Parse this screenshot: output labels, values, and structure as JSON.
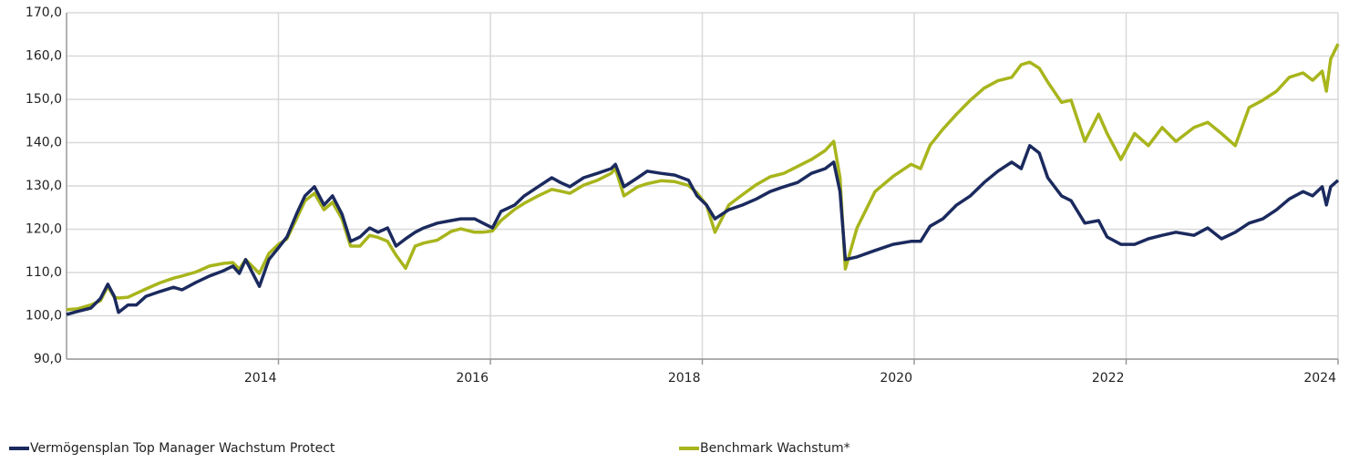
{
  "chart_data": {
    "type": "line",
    "x": [
      2012.0,
      2012.1,
      2012.23,
      2012.32,
      2012.39,
      2012.45,
      2012.49,
      2012.58,
      2012.66,
      2012.75,
      2012.88,
      2013.01,
      2013.09,
      2013.22,
      2013.35,
      2013.48,
      2013.57,
      2013.63,
      2013.69,
      2013.82,
      2013.91,
      2014.0,
      2014.08,
      2014.17,
      2014.25,
      2014.34,
      2014.43,
      2014.51,
      2014.6,
      2014.68,
      2014.77,
      2014.86,
      2014.94,
      2015.03,
      2015.11,
      2015.2,
      2015.29,
      2015.37,
      2015.5,
      2015.63,
      2015.72,
      2015.85,
      2015.93,
      2016.02,
      2016.1,
      2016.23,
      2016.32,
      2016.45,
      2016.58,
      2016.66,
      2016.75,
      2016.88,
      2017.01,
      2017.14,
      2017.18,
      2017.26,
      2017.39,
      2017.48,
      2017.61,
      2017.74,
      2017.87,
      2017.95,
      2018.04,
      2018.12,
      2018.25,
      2018.38,
      2018.51,
      2018.64,
      2018.77,
      2018.9,
      2019.03,
      2019.16,
      2019.24,
      2019.3,
      2019.35,
      2019.46,
      2019.63,
      2019.8,
      2019.97,
      2020.06,
      2020.15,
      2020.27,
      2020.4,
      2020.53,
      2020.66,
      2020.79,
      2020.92,
      2021.01,
      2021.09,
      2021.18,
      2021.26,
      2021.39,
      2021.48,
      2021.61,
      2021.74,
      2021.82,
      2021.95,
      2022.08,
      2022.21,
      2022.34,
      2022.47,
      2022.64,
      2022.77,
      2022.9,
      2023.03,
      2023.16,
      2023.29,
      2023.42,
      2023.54,
      2023.67,
      2023.76,
      2023.85,
      2023.89,
      2023.93,
      2024.0
    ],
    "series": [
      {
        "name": "Vermögensplan Top Manager Wachstum Protect",
        "color": "#1b2a5e",
        "values": [
          100.3,
          101,
          101.8,
          104,
          107.3,
          104.5,
          100.8,
          102.5,
          102.5,
          104.5,
          105.6,
          106.6,
          106,
          107.7,
          109.2,
          110.4,
          111.5,
          109.8,
          113,
          106.8,
          113,
          115.7,
          118.2,
          123.5,
          127.7,
          129.8,
          125.6,
          127.7,
          123.5,
          117.2,
          118.2,
          120.3,
          119.3,
          120.3,
          116.1,
          117.8,
          119.3,
          120.3,
          121.4,
          122,
          122.4,
          122.4,
          121.4,
          120.3,
          124.1,
          125.6,
          127.7,
          129.8,
          131.9,
          130.8,
          129.8,
          131.9,
          132.9,
          134,
          135,
          129.8,
          131.9,
          133.4,
          132.9,
          132.5,
          131.3,
          127.7,
          125.6,
          122.4,
          124.5,
          125.6,
          127,
          128.7,
          129.8,
          130.8,
          132.9,
          134,
          135.5,
          128.7,
          113,
          113.6,
          115.1,
          116.5,
          117.2,
          117.2,
          120.7,
          122.4,
          125.6,
          127.7,
          130.8,
          133.4,
          135.5,
          134,
          139.3,
          137.6,
          131.9,
          127.7,
          126.6,
          121.4,
          122,
          118.2,
          116.5,
          116.5,
          117.8,
          118.6,
          119.3,
          118.6,
          120.3,
          117.8,
          119.3,
          121.4,
          122.4,
          124.5,
          127,
          128.7,
          127.7,
          129.8,
          125.6,
          129.8,
          131.3
        ]
      },
      {
        "name": "Benchmark Wachstum*",
        "color": "#a8b51c",
        "values": [
          101.4,
          101.6,
          102.5,
          103.5,
          106.8,
          104.3,
          104.1,
          104.3,
          105.2,
          106.2,
          107.6,
          108.7,
          109.2,
          110.1,
          111.5,
          112.1,
          112.3,
          110.8,
          113,
          109.8,
          114.4,
          116.5,
          117.8,
          122.4,
          126.6,
          128.3,
          124.5,
          126.2,
          122.4,
          116.1,
          116.1,
          118.6,
          118.1,
          117.2,
          114,
          111,
          116.1,
          116.8,
          117.5,
          119.5,
          120.1,
          119.3,
          119.3,
          119.6,
          122,
          124.6,
          126,
          127.7,
          129.2,
          128.8,
          128.3,
          130.2,
          131.3,
          132.9,
          134,
          127.7,
          129.8,
          130.5,
          131.2,
          131,
          130.1,
          128.4,
          125.6,
          119.3,
          125.6,
          128,
          130.3,
          132.1,
          132.9,
          134.5,
          136.1,
          138.2,
          140.3,
          131.9,
          110.8,
          120.3,
          128.7,
          132.2,
          135,
          134,
          139.4,
          143.1,
          146.6,
          149.8,
          152.6,
          154.3,
          155.1,
          158,
          158.6,
          157.2,
          154,
          149.3,
          149.8,
          140.3,
          146.6,
          142.1,
          136.1,
          142.1,
          139.3,
          143.5,
          140.3,
          143.5,
          144.7,
          142.1,
          139.3,
          148.1,
          149.8,
          151.9,
          155.1,
          156.1,
          154.4,
          156.5,
          151.9,
          159.3,
          162.8
        ]
      }
    ],
    "xlim": [
      2012,
      2024
    ],
    "xticks": [
      2014,
      2016,
      2018,
      2020,
      2022,
      2024
    ],
    "ylim": [
      90,
      170
    ],
    "yticks": [
      {
        "value": 90,
        "label": "90,0"
      },
      {
        "value": 100,
        "label": "100,0"
      },
      {
        "value": 110,
        "label": "110,0"
      },
      {
        "value": 120,
        "label": "120,0"
      },
      {
        "value": 130,
        "label": "130,0"
      },
      {
        "value": 140,
        "label": "140,0"
      },
      {
        "value": 150,
        "label": "150,0"
      },
      {
        "value": 160,
        "label": "160,0"
      },
      {
        "value": 170,
        "label": "170,0"
      }
    ],
    "grid": true,
    "legend": "bottom"
  }
}
